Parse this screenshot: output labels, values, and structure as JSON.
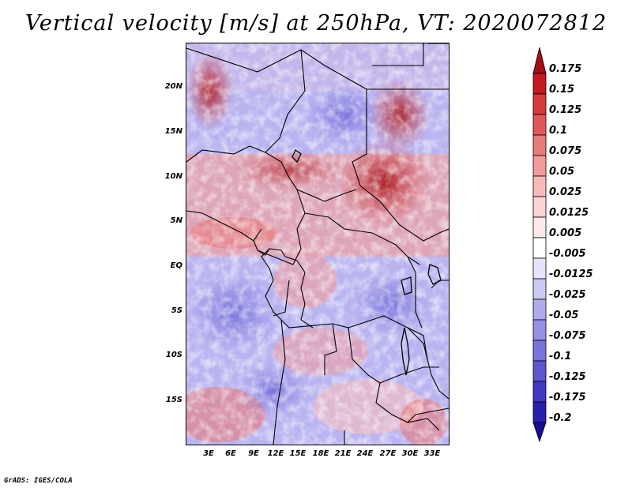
{
  "title": "Vertical velocity [m/s] at 250hPa, VT: 2020072812",
  "credit": "GrADS: IGES/COLA",
  "lat_labels": [
    "20N",
    "15N",
    "10N",
    "5N",
    "EQ",
    "5S",
    "10S",
    "15S"
  ],
  "lon_labels": [
    "3E",
    "6E",
    "9E",
    "12E",
    "15E",
    "18E",
    "21E",
    "24E",
    "27E",
    "30E",
    "33E"
  ],
  "colorbar": {
    "levels": [
      "0.175",
      "0.15",
      "0.125",
      "0.1",
      "0.075",
      "0.05",
      "0.025",
      "0.0125",
      "0.005",
      "-0.005",
      "-0.0125",
      "-0.025",
      "-0.05",
      "-0.075",
      "-0.1",
      "-0.125",
      "-0.175",
      "-0.2"
    ],
    "colors": [
      "#a50f15",
      "#c3191f",
      "#d63a3a",
      "#e0585a",
      "#ea7a7a",
      "#f29b9b",
      "#f7baba",
      "#fbd4d4",
      "#fde9e9",
      "#ffffff",
      "#e6e3fb",
      "#cdc9f5",
      "#b1abee",
      "#9590e6",
      "#7973dc",
      "#5d57d1",
      "#3f39c2",
      "#2520ab",
      "#170f8f"
    ]
  }
}
